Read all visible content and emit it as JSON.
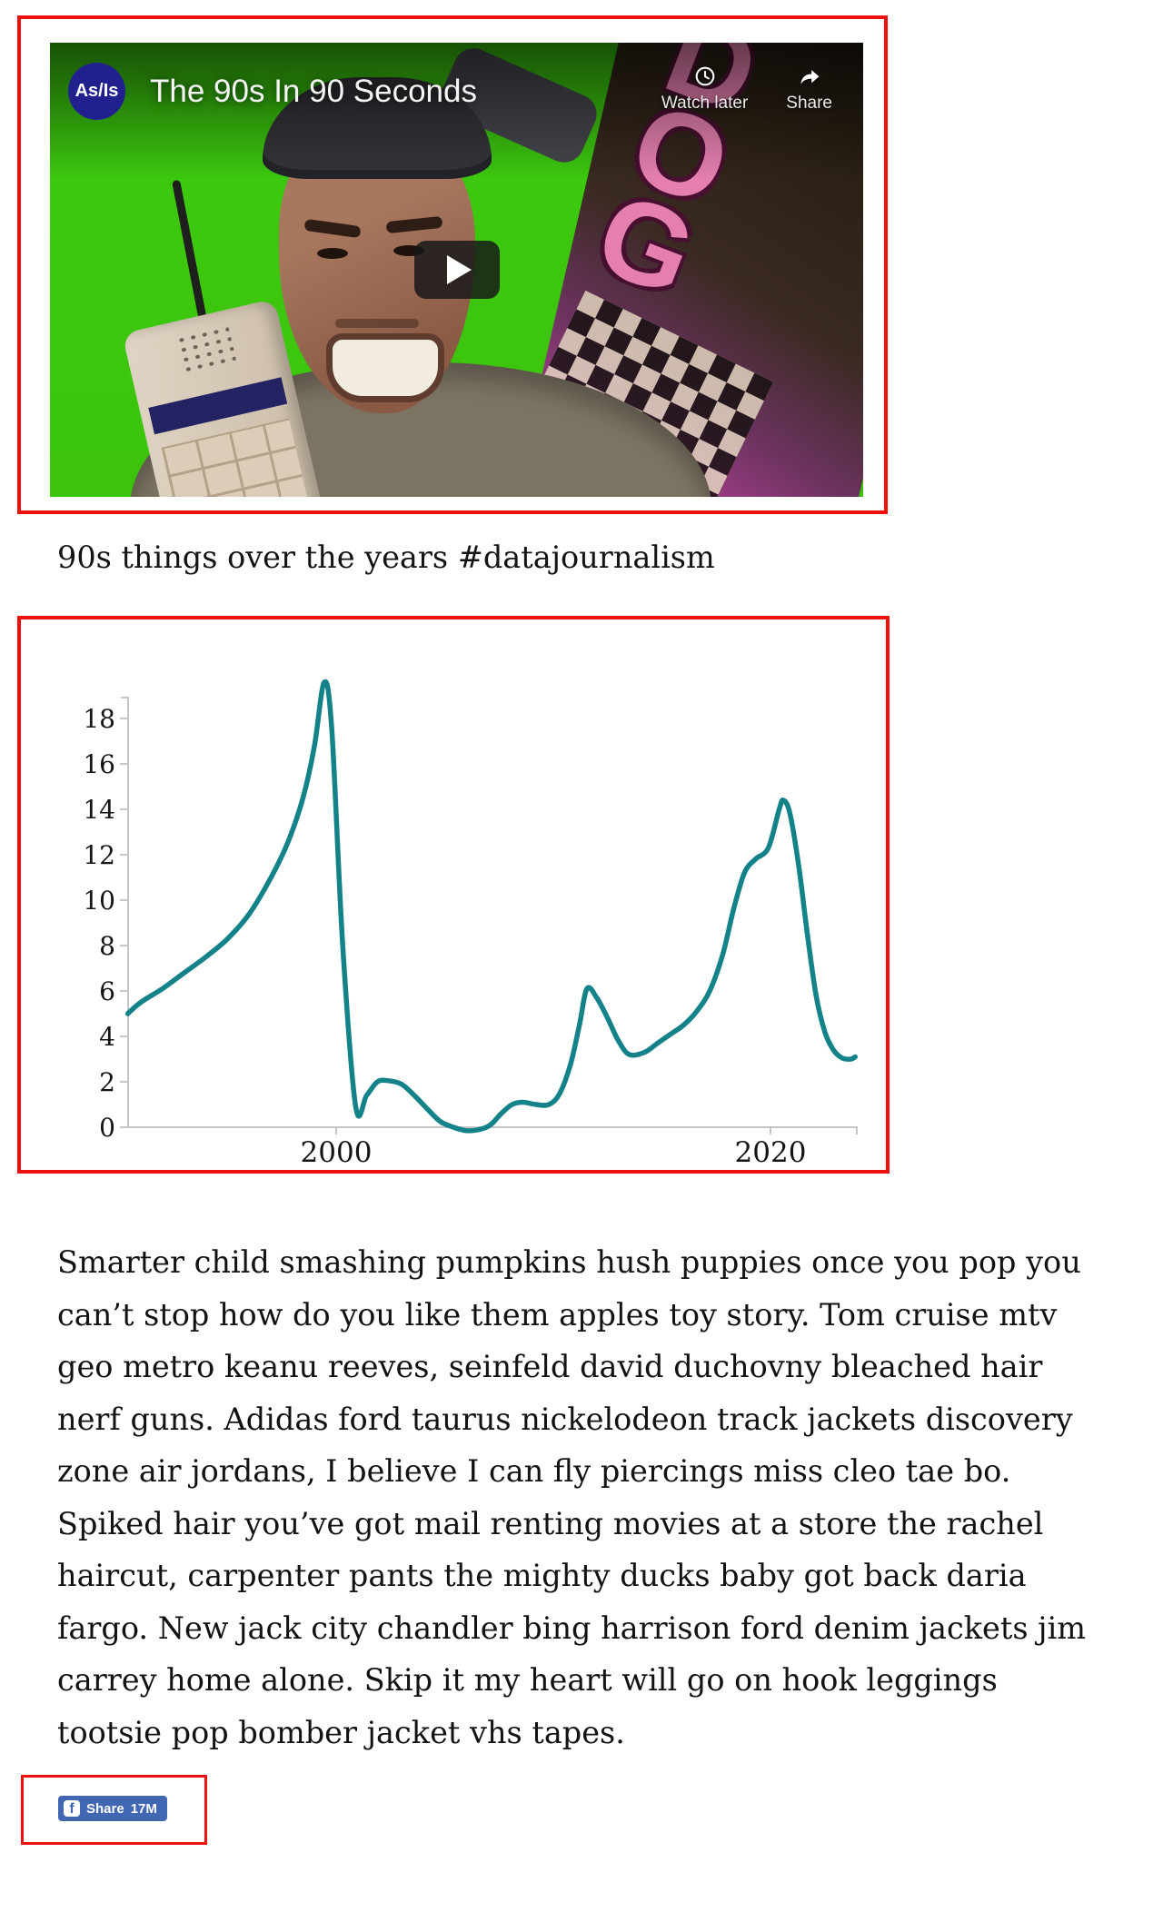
{
  "video": {
    "channel_logo": "As/Is",
    "title": "The 90s In 90 Seconds",
    "watch_later_label": "Watch later",
    "share_label": "Share",
    "poster_text": "DOG"
  },
  "caption": "90s things over the years #datajournalism",
  "chart_data": {
    "type": "line",
    "title": "",
    "xlabel": "",
    "ylabel": "",
    "grid": false,
    "legend": "none",
    "x_ticks": [
      2000,
      2020
    ],
    "y_ticks": [
      0,
      2,
      4,
      6,
      8,
      10,
      12,
      14,
      16,
      18
    ],
    "xlim": [
      1990.4,
      2024
    ],
    "ylim": [
      -0.2,
      19.6
    ],
    "line_color": "#138289",
    "series": [
      {
        "name": "90s things over the years",
        "points": [
          [
            1990.4,
            5.0
          ],
          [
            1991,
            5.5
          ],
          [
            1992,
            6.1
          ],
          [
            1993,
            6.8
          ],
          [
            1994,
            7.5
          ],
          [
            1995,
            8.3
          ],
          [
            1996,
            9.4
          ],
          [
            1997,
            11.0
          ],
          [
            1997.8,
            12.6
          ],
          [
            1998.5,
            14.6
          ],
          [
            1999.0,
            16.8
          ],
          [
            1999.45,
            19.6
          ],
          [
            1999.8,
            17.5
          ],
          [
            2000.3,
            8.0
          ],
          [
            2000.9,
            0.9
          ],
          [
            2001.4,
            1.4
          ],
          [
            2001.9,
            2.0
          ],
          [
            2002.4,
            2.05
          ],
          [
            2003.0,
            1.9
          ],
          [
            2003.6,
            1.4
          ],
          [
            2004.2,
            0.8
          ],
          [
            2004.8,
            0.25
          ],
          [
            2005.4,
            0.0
          ],
          [
            2006.0,
            -0.15
          ],
          [
            2006.6,
            -0.1
          ],
          [
            2007.1,
            0.1
          ],
          [
            2007.6,
            0.6
          ],
          [
            2008.1,
            1.0
          ],
          [
            2008.6,
            1.1
          ],
          [
            2009.2,
            1.0
          ],
          [
            2009.8,
            1.0
          ],
          [
            2010.3,
            1.5
          ],
          [
            2010.8,
            2.8
          ],
          [
            2011.2,
            4.5
          ],
          [
            2011.55,
            6.1
          ],
          [
            2012.0,
            5.7
          ],
          [
            2012.5,
            4.8
          ],
          [
            2013.0,
            3.8
          ],
          [
            2013.5,
            3.2
          ],
          [
            2014.2,
            3.3
          ],
          [
            2014.8,
            3.7
          ],
          [
            2015.4,
            4.1
          ],
          [
            2016.0,
            4.5
          ],
          [
            2016.6,
            5.1
          ],
          [
            2017.2,
            6.0
          ],
          [
            2017.8,
            7.6
          ],
          [
            2018.3,
            9.6
          ],
          [
            2018.8,
            11.2
          ],
          [
            2019.3,
            11.8
          ],
          [
            2019.9,
            12.3
          ],
          [
            2020.4,
            14.0
          ],
          [
            2020.6,
            14.4
          ],
          [
            2020.9,
            13.8
          ],
          [
            2021.3,
            11.5
          ],
          [
            2021.7,
            8.5
          ],
          [
            2022.1,
            5.8
          ],
          [
            2022.5,
            4.2
          ],
          [
            2022.9,
            3.4
          ],
          [
            2023.3,
            3.05
          ],
          [
            2023.7,
            3.0
          ],
          [
            2023.9,
            3.1
          ]
        ]
      }
    ]
  },
  "paragraph": "Smarter child smashing pumpkins hush puppies once you pop you can’t stop how do you like them apples toy story. Tom cruise mtv geo metro keanu reeves, seinfeld david duchovny bleached hair nerf guns. Adidas ford taurus nickelodeon track jackets discovery zone air jordans, I believe I can fly piercings miss cleo tae bo. Spiked hair you’ve got mail renting movies at a store the rachel haircut, carpenter pants the mighty ducks baby got back daria fargo. New jack city chandler bing harrison ford denim jackets jim carrey home alone. Skip it my heart will go on hook leggings tootsie pop bomber jacket vhs tapes.",
  "facebook_share": {
    "label": "Share",
    "count": "17M"
  },
  "colors": {
    "annotation_red": "#ee0f0f",
    "chart_line": "#138289",
    "facebook_blue": "#4267b2",
    "green_screen": "#3cc40d",
    "avatar_blue": "#20218f"
  }
}
